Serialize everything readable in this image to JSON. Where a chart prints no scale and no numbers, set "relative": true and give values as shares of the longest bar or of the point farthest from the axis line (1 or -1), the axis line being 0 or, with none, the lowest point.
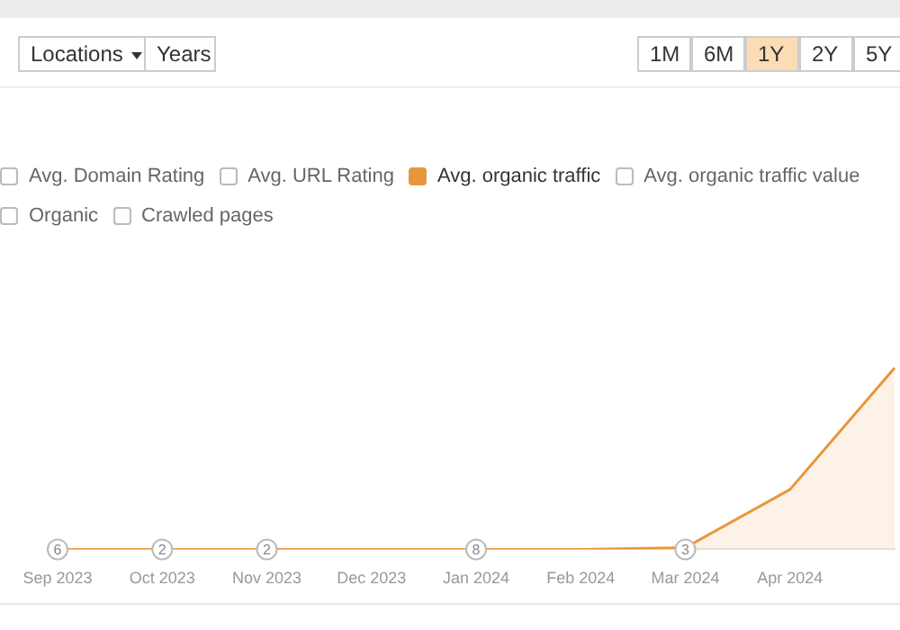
{
  "chart_data": {
    "type": "area",
    "relative": true,
    "legend": "top left",
    "categories": [
      "Sep 2023",
      "Oct 2023",
      "Nov 2023",
      "Dec 2023",
      "Jan 2024",
      "Feb 2024",
      "Mar 2024",
      "Apr 2024",
      null
    ],
    "series": [
      {
        "name": "Avg. organic traffic",
        "color": "#e8963c",
        "values": [
          0,
          0,
          0,
          0,
          0,
          0,
          0.01,
          0.33,
          1
        ]
      }
    ],
    "annotations": [
      "Locations",
      "Years",
      "1M",
      "6M",
      "1Y",
      "2Y",
      "5Y",
      "Avg. Domain Rating",
      "Avg. URL Rating",
      "Avg. organic traffic value",
      "Organic",
      "Crawled pages",
      {
        "text": "6",
        "x": "Sep 2023",
        "y": 0
      },
      {
        "text": "2",
        "x": "Oct 2023",
        "y": 0
      },
      {
        "text": "2",
        "x": "Nov 2023",
        "y": 0
      },
      {
        "text": "8",
        "x": "Jan 2024",
        "y": 0
      },
      {
        "text": "3",
        "x": "Mar 2024",
        "y": 0
      }
    ]
  }
}
